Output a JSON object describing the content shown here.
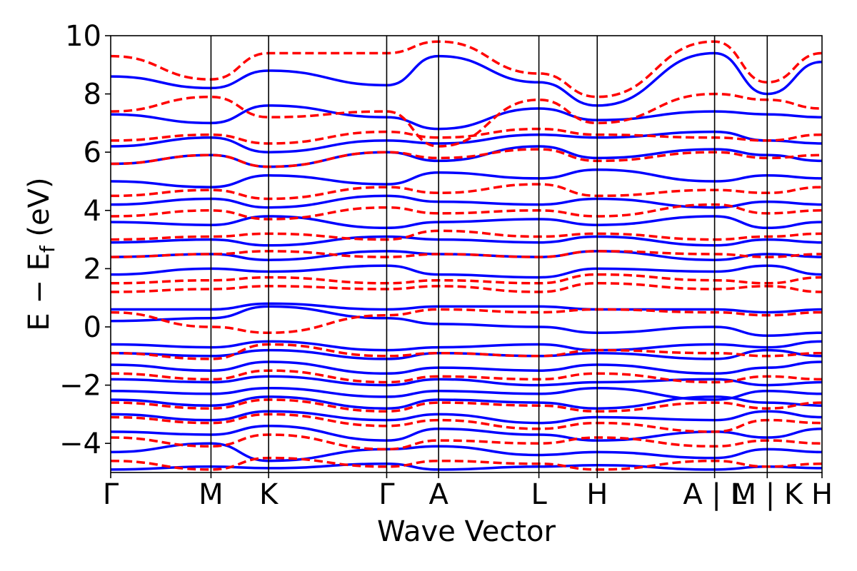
{
  "chart_data": {
    "type": "line",
    "title": "",
    "xlabel": "Wave Vector",
    "ylabel": "E − E_f (eV)",
    "ylabel_parts": {
      "main": "E − E",
      "sub": "f",
      "unit": " (eV)"
    },
    "ylim": [
      -5,
      10
    ],
    "yticks": [
      -4,
      -2,
      0,
      2,
      4,
      6,
      8,
      10
    ],
    "ytick_labels": [
      "−4",
      "−2",
      "0",
      "2",
      "4",
      "6",
      "8",
      "10"
    ],
    "x_range": [
      0,
      1
    ],
    "high_symmetry_points": [
      {
        "label": "Γ",
        "x": 0.0
      },
      {
        "label": "M",
        "x": 0.141
      },
      {
        "label": "K",
        "x": 0.222
      },
      {
        "label": "Γ",
        "x": 0.388
      },
      {
        "label": "A",
        "x": 0.461
      },
      {
        "label": "L",
        "x": 0.602
      },
      {
        "label": "H",
        "x": 0.684
      },
      {
        "label": "A | L",
        "x": 0.849
      },
      {
        "label": "M | K",
        "x": 0.923
      },
      {
        "label": "H",
        "x": 1.0
      }
    ],
    "grid": false,
    "legend": "none",
    "series": [
      {
        "style": "solid",
        "color": "#0000ff",
        "bands": [
          [
            -4.9,
            -4.8,
            -4.85,
            -4.7,
            -4.9,
            -4.8,
            -4.75,
            -4.9,
            -4.8,
            -4.85
          ],
          [
            -4.3,
            -4.0,
            -4.6,
            -4.2,
            -4.1,
            -4.4,
            -4.3,
            -4.5,
            -4.2,
            -4.3
          ],
          [
            -3.6,
            -3.7,
            -3.4,
            -3.9,
            -3.5,
            -3.7,
            -3.9,
            -3.6,
            -3.8,
            -3.5
          ],
          [
            -3.0,
            -3.2,
            -2.9,
            -3.2,
            -3.0,
            -3.3,
            -3.1,
            -3.2,
            -2.9,
            -3.1
          ],
          [
            -2.5,
            -2.7,
            -2.4,
            -2.8,
            -2.5,
            -2.6,
            -2.8,
            -2.4,
            -2.6,
            -2.7
          ],
          [
            -2.2,
            -2.3,
            -2.1,
            -2.4,
            -2.2,
            -2.3,
            -2.1,
            -2.5,
            -2.2,
            -2.3
          ],
          [
            -1.8,
            -1.9,
            -1.7,
            -2.0,
            -1.8,
            -2.0,
            -1.9,
            -1.8,
            -2.0,
            -1.9
          ],
          [
            -1.3,
            -1.5,
            -1.2,
            -1.6,
            -1.4,
            -1.5,
            -1.3,
            -1.6,
            -1.4,
            -1.2
          ],
          [
            -0.9,
            -1.0,
            -0.8,
            -1.1,
            -0.9,
            -1.0,
            -0.9,
            -1.1,
            -0.8,
            -1.0
          ],
          [
            -0.6,
            -0.7,
            -0.5,
            -0.8,
            -0.7,
            -0.6,
            -0.8,
            -0.6,
            -0.7,
            -0.5
          ],
          [
            0.2,
            0.3,
            0.7,
            0.3,
            0.1,
            0.0,
            -0.2,
            0.0,
            -0.3,
            -0.2
          ],
          [
            0.6,
            0.6,
            0.8,
            0.6,
            0.7,
            0.7,
            0.6,
            0.6,
            0.5,
            0.6
          ],
          [
            1.8,
            2.0,
            1.9,
            2.1,
            1.8,
            1.7,
            2.0,
            1.9,
            2.1,
            1.8
          ],
          [
            2.4,
            2.5,
            2.3,
            2.6,
            2.5,
            2.4,
            2.6,
            2.3,
            2.5,
            2.4
          ],
          [
            2.9,
            3.0,
            2.8,
            3.1,
            3.0,
            2.9,
            3.1,
            2.8,
            3.0,
            2.9
          ],
          [
            3.6,
            3.5,
            3.8,
            3.4,
            3.6,
            3.7,
            3.5,
            3.8,
            3.4,
            3.6
          ],
          [
            4.2,
            4.4,
            4.1,
            4.5,
            4.3,
            4.2,
            4.4,
            4.1,
            4.3,
            4.2
          ],
          [
            5.0,
            4.8,
            5.2,
            4.9,
            5.3,
            5.1,
            5.4,
            5.0,
            5.2,
            5.1
          ],
          [
            5.6,
            5.9,
            5.5,
            6.0,
            5.7,
            6.2,
            5.8,
            6.1,
            5.9,
            5.7
          ],
          [
            6.2,
            6.5,
            6.0,
            6.4,
            6.3,
            6.6,
            6.5,
            6.7,
            6.4,
            6.3
          ],
          [
            7.3,
            7.0,
            7.6,
            7.2,
            6.8,
            7.5,
            7.1,
            7.4,
            7.3,
            7.2
          ],
          [
            8.6,
            8.2,
            8.8,
            8.3,
            9.3,
            8.4,
            7.6,
            9.4,
            8.0,
            9.1
          ]
        ]
      },
      {
        "style": "dashed",
        "color": "#ff0000",
        "bands": [
          [
            -4.6,
            -4.9,
            -4.5,
            -4.8,
            -4.6,
            -4.7,
            -4.9,
            -4.6,
            -4.8,
            -4.7
          ],
          [
            -3.8,
            -4.1,
            -3.7,
            -4.2,
            -3.9,
            -4.0,
            -3.8,
            -4.1,
            -3.9,
            -4.0
          ],
          [
            -3.1,
            -3.3,
            -3.0,
            -3.4,
            -3.2,
            -3.5,
            -3.3,
            -3.6,
            -3.2,
            -3.3
          ],
          [
            -2.6,
            -2.8,
            -2.5,
            -2.9,
            -2.6,
            -2.7,
            -2.9,
            -2.6,
            -2.8,
            -2.6
          ],
          [
            -1.6,
            -1.8,
            -1.5,
            -1.9,
            -1.7,
            -1.8,
            -1.6,
            -1.9,
            -1.7,
            -1.8
          ],
          [
            -0.9,
            -1.1,
            -0.6,
            -1.0,
            -0.9,
            -1.0,
            -0.8,
            -0.9,
            -1.0,
            -0.9
          ],
          [
            0.5,
            0.0,
            -0.2,
            0.4,
            0.6,
            0.5,
            0.6,
            0.5,
            0.4,
            0.5
          ],
          [
            1.2,
            1.3,
            1.4,
            1.3,
            1.4,
            1.2,
            1.5,
            1.3,
            1.4,
            1.2
          ],
          [
            1.5,
            1.6,
            1.7,
            1.5,
            1.6,
            1.5,
            1.8,
            1.6,
            1.5,
            1.7
          ],
          [
            2.4,
            2.5,
            2.6,
            2.4,
            2.5,
            2.4,
            2.6,
            2.5,
            2.4,
            2.5
          ],
          [
            3.0,
            3.1,
            3.2,
            3.0,
            3.3,
            3.1,
            3.2,
            3.0,
            3.1,
            3.2
          ],
          [
            3.8,
            4.0,
            3.7,
            4.1,
            3.9,
            4.0,
            3.8,
            4.2,
            3.9,
            4.0
          ],
          [
            4.5,
            4.7,
            4.4,
            4.8,
            4.6,
            4.9,
            4.5,
            4.7,
            4.6,
            4.8
          ],
          [
            5.6,
            5.9,
            5.5,
            6.0,
            5.8,
            6.1,
            5.7,
            6.0,
            5.8,
            5.9
          ],
          [
            6.4,
            6.6,
            6.3,
            6.7,
            6.5,
            6.8,
            6.6,
            6.5,
            6.4,
            6.6
          ],
          [
            7.4,
            7.9,
            7.2,
            7.4,
            6.2,
            7.8,
            7.0,
            8.0,
            7.8,
            7.5
          ],
          [
            9.3,
            8.5,
            9.4,
            9.4,
            9.8,
            8.7,
            7.9,
            9.8,
            8.4,
            9.4
          ]
        ]
      }
    ]
  }
}
